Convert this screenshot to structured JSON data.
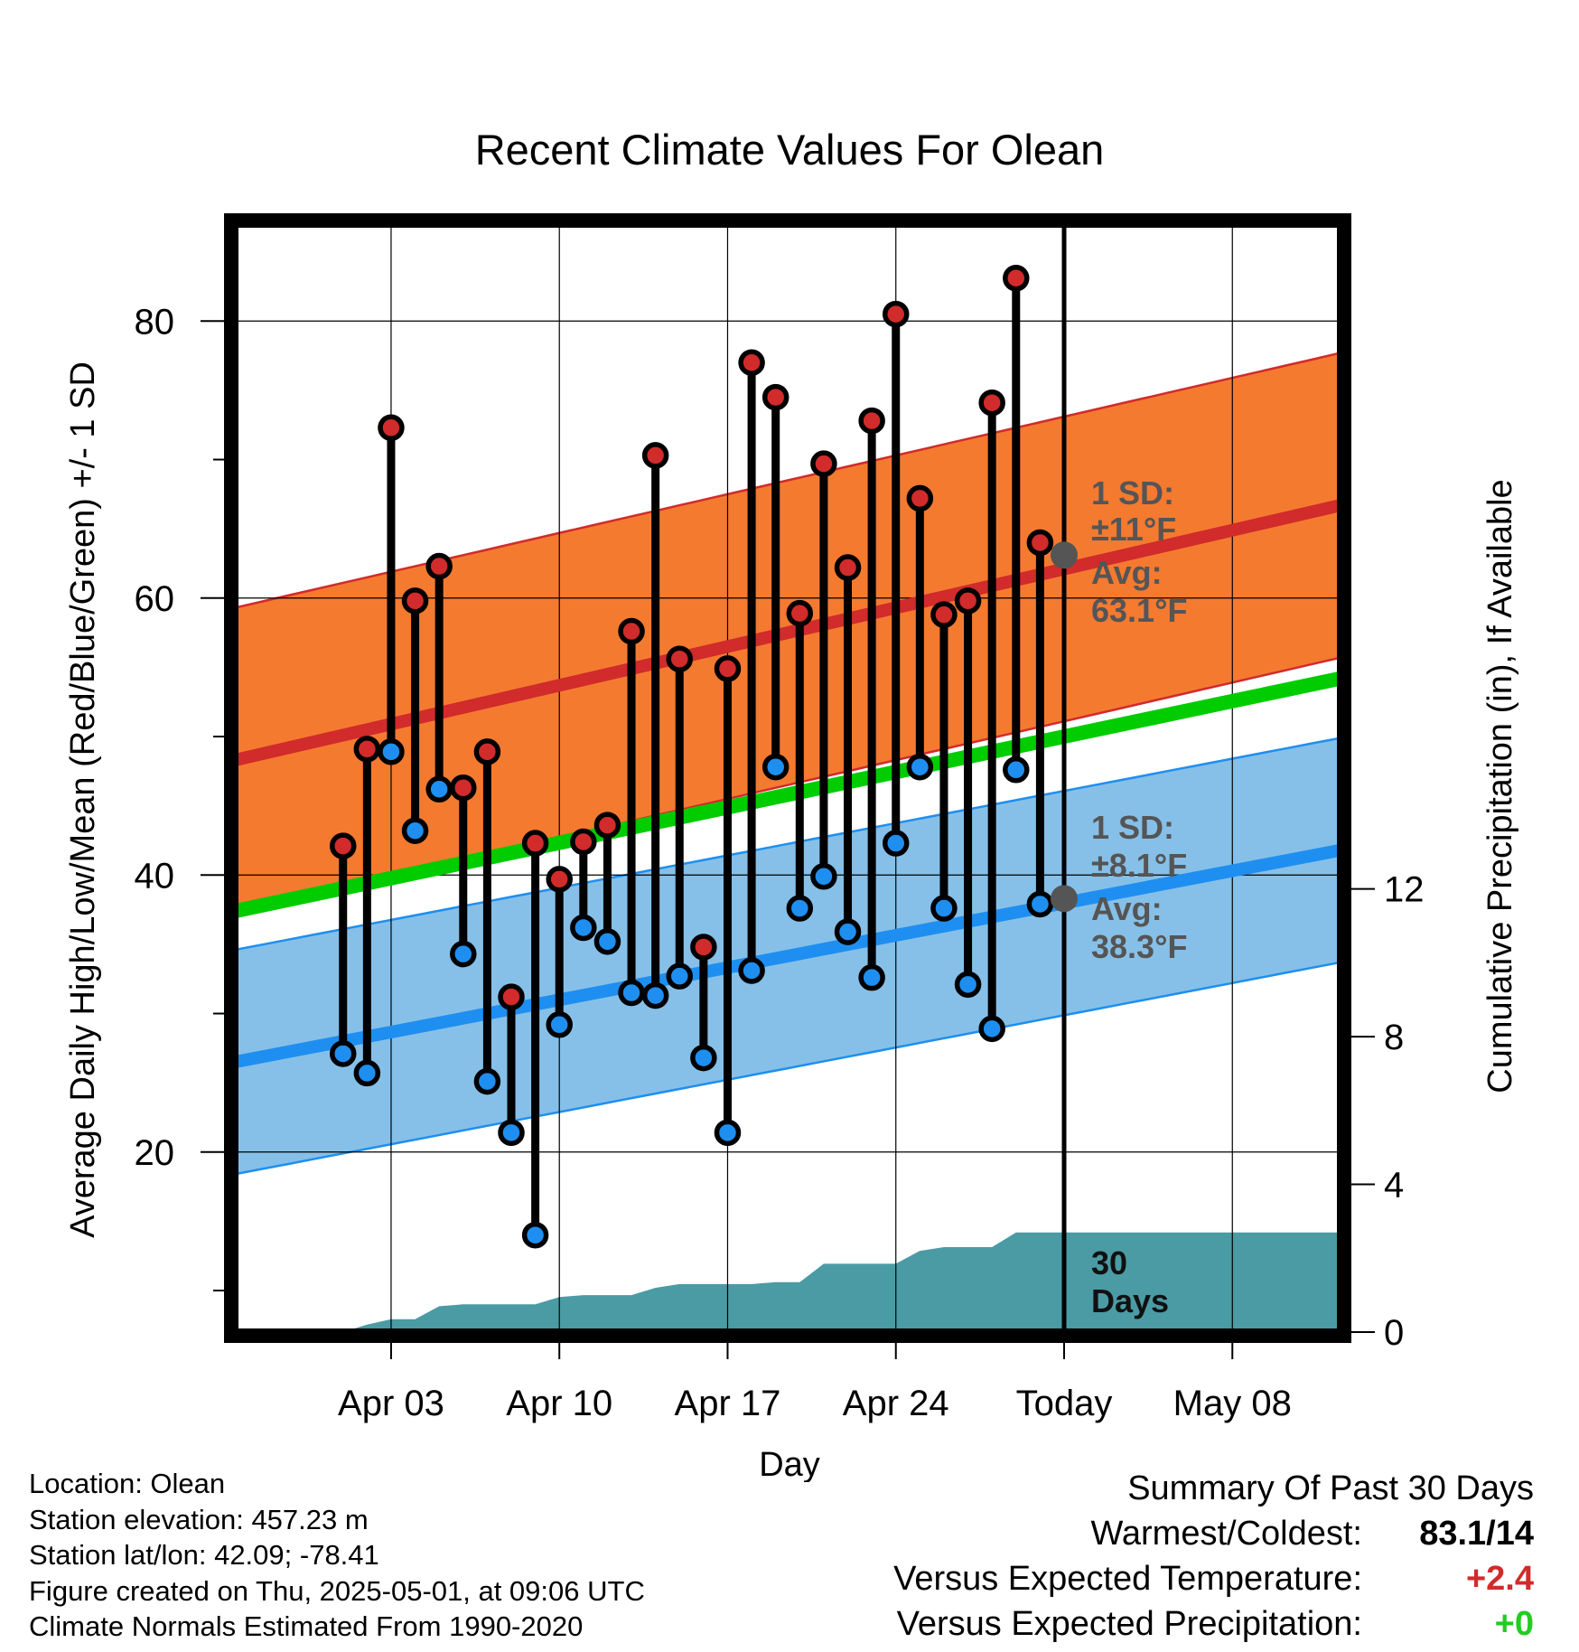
{
  "chart_data": {
    "type": "line",
    "title": "Recent Climate Values For Olean",
    "xlabel": "Day",
    "ylabel": "Average Daily High/Low/Mean (Red/Blue/Green) +/- 1 SD",
    "y2label": "Cumulative Precipitation (in), If Available",
    "xlim": [
      -3.5,
      42.5
    ],
    "ylim": [
      7,
      87
    ],
    "y2lim": [
      0,
      30
    ],
    "xticks": [
      {
        "day": 3,
        "label": "Apr 03"
      },
      {
        "day": 10,
        "label": "Apr 10"
      },
      {
        "day": 17,
        "label": "Apr 17"
      },
      {
        "day": 24,
        "label": "Apr 24"
      },
      {
        "day": 31,
        "label": "Today"
      },
      {
        "day": 38,
        "label": "May 08"
      }
    ],
    "yticks": [
      20,
      40,
      60,
      80
    ],
    "y2ticks": [
      0,
      4,
      8,
      12
    ],
    "grid": true,
    "days": [
      1,
      2,
      3,
      4,
      5,
      6,
      7,
      8,
      9,
      10,
      11,
      12,
      13,
      14,
      15,
      16,
      17,
      18,
      19,
      20,
      21,
      22,
      23,
      24,
      25,
      26,
      27,
      28,
      29,
      30
    ],
    "highs": [
      42.1,
      49.1,
      72.3,
      59.8,
      62.3,
      46.3,
      48.9,
      31.2,
      42.3,
      39.7,
      42.4,
      43.6,
      57.6,
      70.3,
      55.6,
      34.8,
      54.9,
      77.0,
      74.5,
      58.9,
      69.7,
      62.2,
      72.8,
      80.5,
      67.2,
      58.8,
      59.8,
      74.1,
      83.1,
      64.0
    ],
    "lows": [
      27.1,
      25.7,
      48.9,
      43.2,
      46.2,
      34.3,
      25.1,
      21.4,
      14.0,
      29.2,
      36.2,
      35.2,
      31.5,
      31.3,
      32.7,
      26.8,
      21.4,
      33.1,
      47.8,
      37.6,
      39.9,
      35.9,
      32.6,
      42.3,
      47.8,
      37.6,
      32.1,
      28.9,
      47.6,
      37.9
    ],
    "normal_high": {
      "start": 48.3,
      "end": 66.7,
      "sd": 11
    },
    "normal_low": {
      "start": 26.5,
      "end": 41.8,
      "sd": 8.1
    },
    "normal_mean": {
      "start": 37.4,
      "end": 54.2
    },
    "precip_cumulative": [
      0.0,
      0.2,
      0.35,
      0.35,
      0.7,
      0.75,
      0.75,
      0.75,
      0.75,
      0.95,
      1.0,
      1.0,
      1.0,
      1.2,
      1.3,
      1.3,
      1.3,
      1.3,
      1.35,
      1.35,
      1.85,
      1.85,
      1.85,
      1.85,
      2.2,
      2.3,
      2.3,
      2.3,
      2.7,
      2.7,
      2.7
    ],
    "annotations": {
      "high_sd_label": "1 SD:",
      "high_sd_value": "±11°F",
      "high_avg_label": "Avg:",
      "high_avg_value": "63.1°F",
      "high_avg_marker": 63.1,
      "low_sd_label": "1 SD:",
      "low_sd_value": "±8.1°F",
      "low_avg_label": "Avg:",
      "low_avg_value": "38.3°F",
      "low_avg_marker": 38.3,
      "window_line1": "30",
      "window_line2": "Days"
    },
    "colors": {
      "high_band": "#f47a30",
      "high_line": "#d12b2b",
      "low_band": "#86c0e8",
      "low_line": "#1e8ff0",
      "mean_line": "#00cc00",
      "precip": "#4a9ba4",
      "high_marker": "#d12b2b",
      "low_marker": "#1e8ff0",
      "annotation": "#555555"
    }
  },
  "info": {
    "location": "Location: Olean",
    "elevation": "Station elevation: 457.23 m",
    "latlon": "Station lat/lon: 42.09; -78.41",
    "created": "Figure created on Thu, 2025-05-01, at 09:06 UTC",
    "normals": "Climate Normals Estimated From 1990-2020"
  },
  "summary": {
    "title": "Summary Of Past 30 Days",
    "warmest_label": "Warmest/Coldest:",
    "warmest_value": "83.1/14",
    "temp_label": "Versus Expected Temperature:",
    "temp_value": "+2.4",
    "temp_color": "#d12b2b",
    "precip_label": "Versus Expected Precipitation:",
    "precip_value": "+0",
    "precip_color": "#22cc22"
  }
}
